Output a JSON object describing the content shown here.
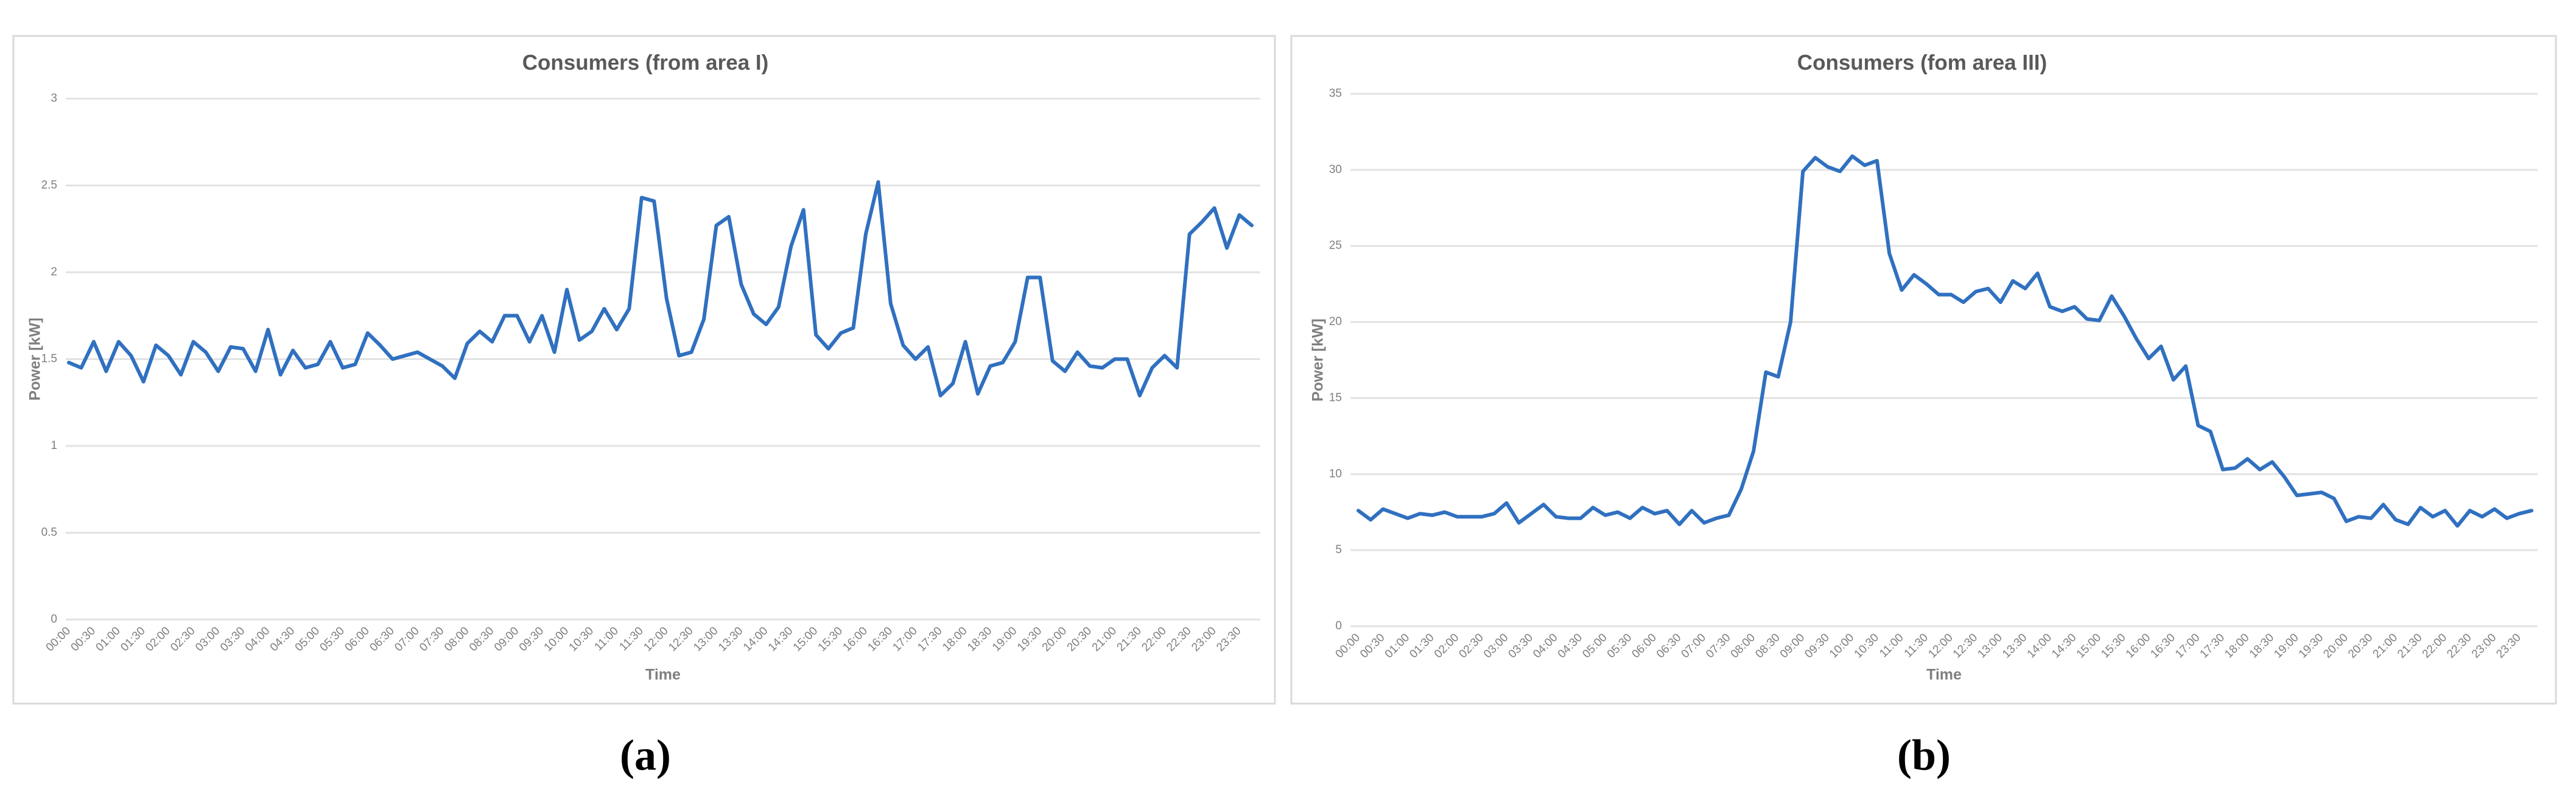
{
  "chart_data": [
    {
      "type": "line",
      "title": "Consumers (from area I)",
      "xlabel": "Time",
      "ylabel": "Power [kW]",
      "label": "(a)",
      "categories": [
        "00:00",
        null,
        "00:30",
        null,
        "01:00",
        null,
        "01:30",
        null,
        "02:00",
        null,
        "02:30",
        null,
        "03:00",
        null,
        "03:30",
        null,
        "04:00",
        null,
        "04:30",
        null,
        "05:00",
        null,
        "05:30",
        null,
        "06:00",
        null,
        "06:30",
        null,
        "07:00",
        null,
        "07:30",
        null,
        "08:00",
        null,
        "08:30",
        null,
        "09:00",
        null,
        "09:30",
        null,
        "10:00",
        null,
        "10:30",
        null,
        "11:00",
        null,
        "11:30",
        null,
        "12:00",
        null,
        "12:30",
        null,
        "13:00",
        null,
        "13:30",
        null,
        "14:00",
        null,
        "14:30",
        null,
        "15:00",
        null,
        "15:30",
        null,
        "16:00",
        null,
        "16:30",
        null,
        "17:00",
        null,
        "17:30",
        null,
        "18:00",
        null,
        "18:30",
        null,
        "19:00",
        null,
        "19:30",
        null,
        "20:00",
        null,
        "20:30",
        null,
        "21:00",
        null,
        "21:30",
        null,
        "22:00",
        null,
        "22:30",
        null,
        "23:00",
        null,
        "23:30",
        null
      ],
      "values": [
        1.48,
        1.45,
        1.6,
        1.43,
        1.6,
        1.52,
        1.37,
        1.58,
        1.52,
        1.41,
        1.6,
        1.54,
        1.43,
        1.57,
        1.56,
        1.43,
        1.67,
        1.41,
        1.55,
        1.45,
        1.47,
        1.6,
        1.45,
        1.47,
        1.65,
        1.58,
        1.5,
        1.52,
        1.54,
        1.5,
        1.46,
        1.39,
        1.59,
        1.66,
        1.6,
        1.75,
        1.75,
        1.6,
        1.75,
        1.54,
        1.9,
        1.61,
        1.66,
        1.79,
        1.67,
        1.79,
        2.43,
        2.41,
        1.85,
        1.52,
        1.54,
        1.73,
        2.27,
        2.32,
        1.93,
        1.76,
        1.7,
        1.8,
        2.15,
        2.36,
        1.64,
        1.56,
        1.65,
        1.68,
        2.22,
        2.52,
        1.82,
        1.58,
        1.5,
        1.57,
        1.29,
        1.36,
        1.6,
        1.3,
        1.46,
        1.48,
        1.6,
        1.97,
        1.97,
        1.49,
        1.43,
        1.54,
        1.46,
        1.45,
        1.5,
        1.5,
        1.29,
        1.45,
        1.52,
        1.45,
        2.22,
        2.29,
        2.37,
        2.14,
        2.33,
        2.27
      ],
      "color": "#3070c0",
      "ylim": [
        0,
        3
      ],
      "yticks": [
        0,
        0.5,
        1,
        1.5,
        2,
        2.5,
        3
      ],
      "grid": true
    },
    {
      "type": "line",
      "title": "Consumers (fom area III)",
      "xlabel": "Time",
      "ylabel": "Power [kW]",
      "label": "(b)",
      "categories": [
        "00:00",
        null,
        "00:30",
        null,
        "01:00",
        null,
        "01:30",
        null,
        "02:00",
        null,
        "02:30",
        null,
        "03:00",
        null,
        "03:30",
        null,
        "04:00",
        null,
        "04:30",
        null,
        "05:00",
        null,
        "05:30",
        null,
        "06:00",
        null,
        "06:30",
        null,
        "07:00",
        null,
        "07:30",
        null,
        "08:00",
        null,
        "08:30",
        null,
        "09:00",
        null,
        "09:30",
        null,
        "10:00",
        null,
        "10:30",
        null,
        "11:00",
        null,
        "11:30",
        null,
        "12:00",
        null,
        "12:30",
        null,
        "13:00",
        null,
        "13:30",
        null,
        "14:00",
        null,
        "14:30",
        null,
        "15:00",
        null,
        "15:30",
        null,
        "16:00",
        null,
        "16:30",
        null,
        "17:00",
        null,
        "17:30",
        null,
        "18:00",
        null,
        "18:30",
        null,
        "19:00",
        null,
        "19:30",
        null,
        "20:00",
        null,
        "20:30",
        null,
        "21:00",
        null,
        "21:30",
        null,
        "22:00",
        null,
        "22:30",
        null,
        "23:00",
        null,
        "23:30",
        null
      ],
      "values": [
        7.6,
        7.0,
        7.7,
        7.4,
        7.1,
        7.4,
        7.3,
        7.5,
        7.2,
        7.2,
        7.2,
        7.4,
        8.1,
        6.8,
        7.4,
        8.0,
        7.2,
        7.1,
        7.1,
        7.8,
        7.3,
        7.5,
        7.1,
        7.8,
        7.4,
        7.6,
        6.7,
        7.6,
        6.8,
        7.1,
        7.3,
        9.0,
        11.5,
        16.7,
        16.4,
        20,
        29.9,
        30.8,
        30.2,
        29.9,
        30.9,
        30.3,
        30.6,
        24.5,
        22.1,
        23.1,
        22.5,
        21.8,
        21.8,
        21.3,
        22.0,
        22.2,
        21.3,
        22.7,
        22.2,
        23.2,
        21.0,
        20.7,
        21.0,
        20.2,
        20.1,
        21.7,
        20.4,
        18.9,
        17.6,
        18.4,
        16.2,
        17.1,
        13.2,
        12.8,
        10.3,
        10.4,
        11.0,
        10.3,
        10.8,
        9.8,
        8.6,
        8.7,
        8.8,
        8.4,
        6.9,
        7.2,
        7.1,
        8.0,
        7.0,
        6.7,
        7.8,
        7.2,
        7.6,
        6.6,
        7.6,
        7.2,
        7.7,
        7.1,
        7.4,
        7.6
      ],
      "color": "#3070c0",
      "ylim": [
        0,
        35
      ],
      "yticks": [
        0,
        5,
        10,
        15,
        20,
        25,
        30,
        35
      ],
      "grid": true
    }
  ]
}
